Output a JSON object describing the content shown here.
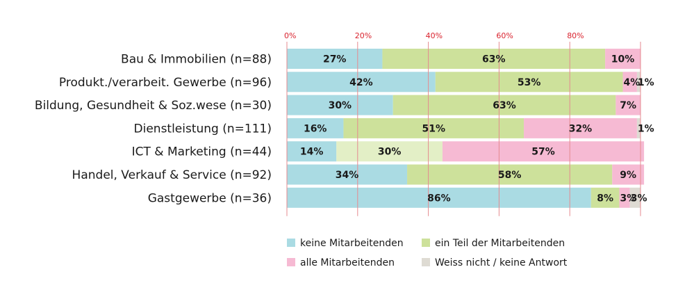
{
  "chart_data": {
    "type": "bar",
    "orientation": "horizontal",
    "stacked": true,
    "xlim": [
      0,
      100
    ],
    "ticks": [
      {
        "value": 0,
        "label": "0%"
      },
      {
        "value": 20,
        "label": "20%"
      },
      {
        "value": 40,
        "label": "40%"
      },
      {
        "value": 60,
        "label": "60%"
      },
      {
        "value": 80,
        "label": "80%"
      },
      {
        "value": 100,
        "label": ""
      }
    ],
    "grid": true,
    "legend_position": "bottom",
    "categories": [
      "Bau & Immobilien (n=88)",
      "Produkt./verarbeit. Gewerbe (n=96)",
      "Bildung, Gesundheit & Soz.wese (n=30)",
      "Dienstleistung (n=111)",
      "ICT & Marketing (n=44)",
      "Handel, Verkauf & Service (n=92)",
      "Gastgewerbe (n=36)"
    ],
    "series": [
      {
        "name": "keine Mitarbeitenden",
        "color": "#aadbe3",
        "values": [
          27,
          42,
          30,
          16,
          14,
          34,
          86
        ],
        "labels": [
          "27%",
          "42%",
          "30%",
          "16%",
          "14%",
          "34%",
          "86%"
        ]
      },
      {
        "name": "ein Teil der Mitarbeitenden",
        "color": "#cde19b",
        "values": [
          63,
          53,
          63,
          51,
          30,
          58,
          8
        ],
        "labels": [
          "63%",
          "53%",
          "63%",
          "51%",
          "30%",
          "58%",
          "8%"
        ],
        "overrides": [
          null,
          null,
          null,
          null,
          "#e3efc6",
          null,
          null
        ]
      },
      {
        "name": "alle Mitarbeitenden",
        "color": "#f6bad3",
        "values": [
          10,
          4,
          7,
          32,
          57,
          9,
          3
        ],
        "labels": [
          "10%",
          "4%",
          "7%",
          "32%",
          "57%",
          "9%",
          "3%"
        ]
      },
      {
        "name": "Weiss nicht / keine Antwort",
        "color": "#dedbd3",
        "values": [
          0,
          1,
          0,
          1,
          0,
          0,
          3
        ],
        "labels": [
          "",
          "1%",
          "",
          "1%",
          "",
          "",
          "3%"
        ]
      }
    ],
    "gridline_color": "#e58a8f"
  }
}
